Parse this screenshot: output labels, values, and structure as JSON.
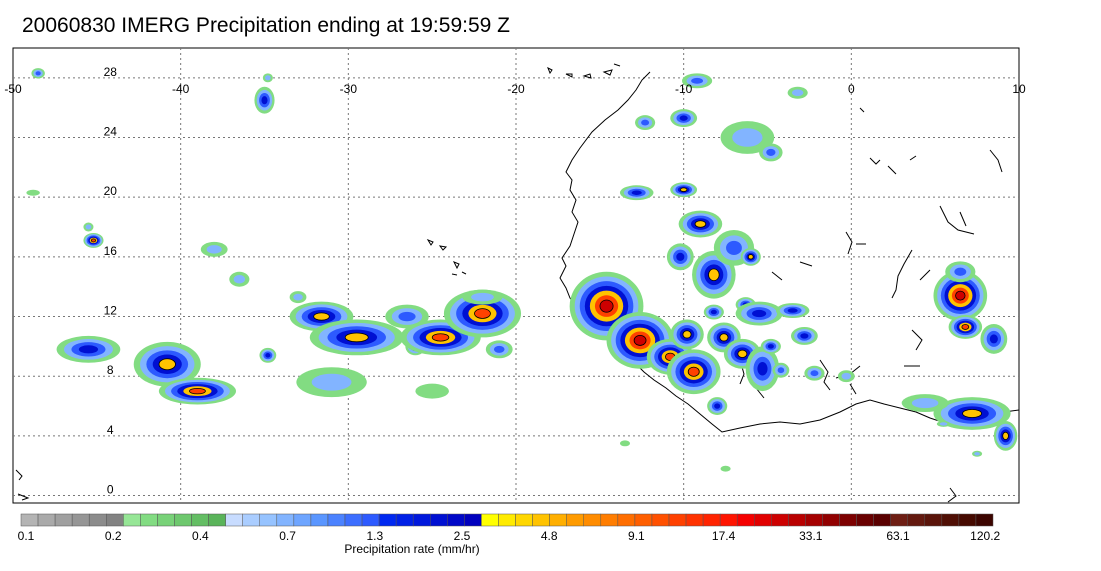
{
  "title": "20060830 IMERG Precipitation ending at 19:59:59 Z",
  "map": {
    "lon_range": [
      -50,
      10
    ],
    "lat_range": [
      -0.5,
      30
    ],
    "lon_ticks": [
      "-50",
      "-40",
      "-30",
      "-20",
      "-10",
      "0",
      "10"
    ],
    "lat_ticks": [
      "0",
      "4",
      "8",
      "12",
      "16",
      "20",
      "24",
      "28"
    ],
    "grid": "dotted"
  },
  "colorbar": {
    "title": "Precipitation rate (mm/hr)",
    "labels": [
      "0.1",
      "0.2",
      "0.4",
      "0.7",
      "1.3",
      "2.5",
      "4.8",
      "9.1",
      "17.4",
      "33.1",
      "63.1",
      "120.2"
    ],
    "colors": [
      "#b4b4b4",
      "#aaaaaa",
      "#a0a0a0",
      "#969696",
      "#8c8c8c",
      "#828282",
      "#96e696",
      "#82dc82",
      "#78d278",
      "#6ec86e",
      "#64be64",
      "#5ab45a",
      "#c8dcff",
      "#aacdff",
      "#96c3ff",
      "#82b4ff",
      "#6ea5ff",
      "#5a96ff",
      "#4b82ff",
      "#3c6eff",
      "#2d5aff",
      "#0028f0",
      "#0020e6",
      "#0018dc",
      "#0010d2",
      "#0008c8",
      "#0000be",
      "#ffff00",
      "#ffeb00",
      "#ffd700",
      "#ffc300",
      "#ffaf00",
      "#ff9b00",
      "#ff8c00",
      "#ff7d00",
      "#ff6e00",
      "#ff5f00",
      "#ff5000",
      "#ff4100",
      "#ff3200",
      "#ff2300",
      "#ff1400",
      "#f50000",
      "#e10000",
      "#cd0000",
      "#b90000",
      "#a50000",
      "#910000",
      "#7d0000",
      "#690000",
      "#5a0000",
      "#6e1e14",
      "#64190f",
      "#5a140a",
      "#500f05",
      "#460a00",
      "#3c0500"
    ]
  }
}
